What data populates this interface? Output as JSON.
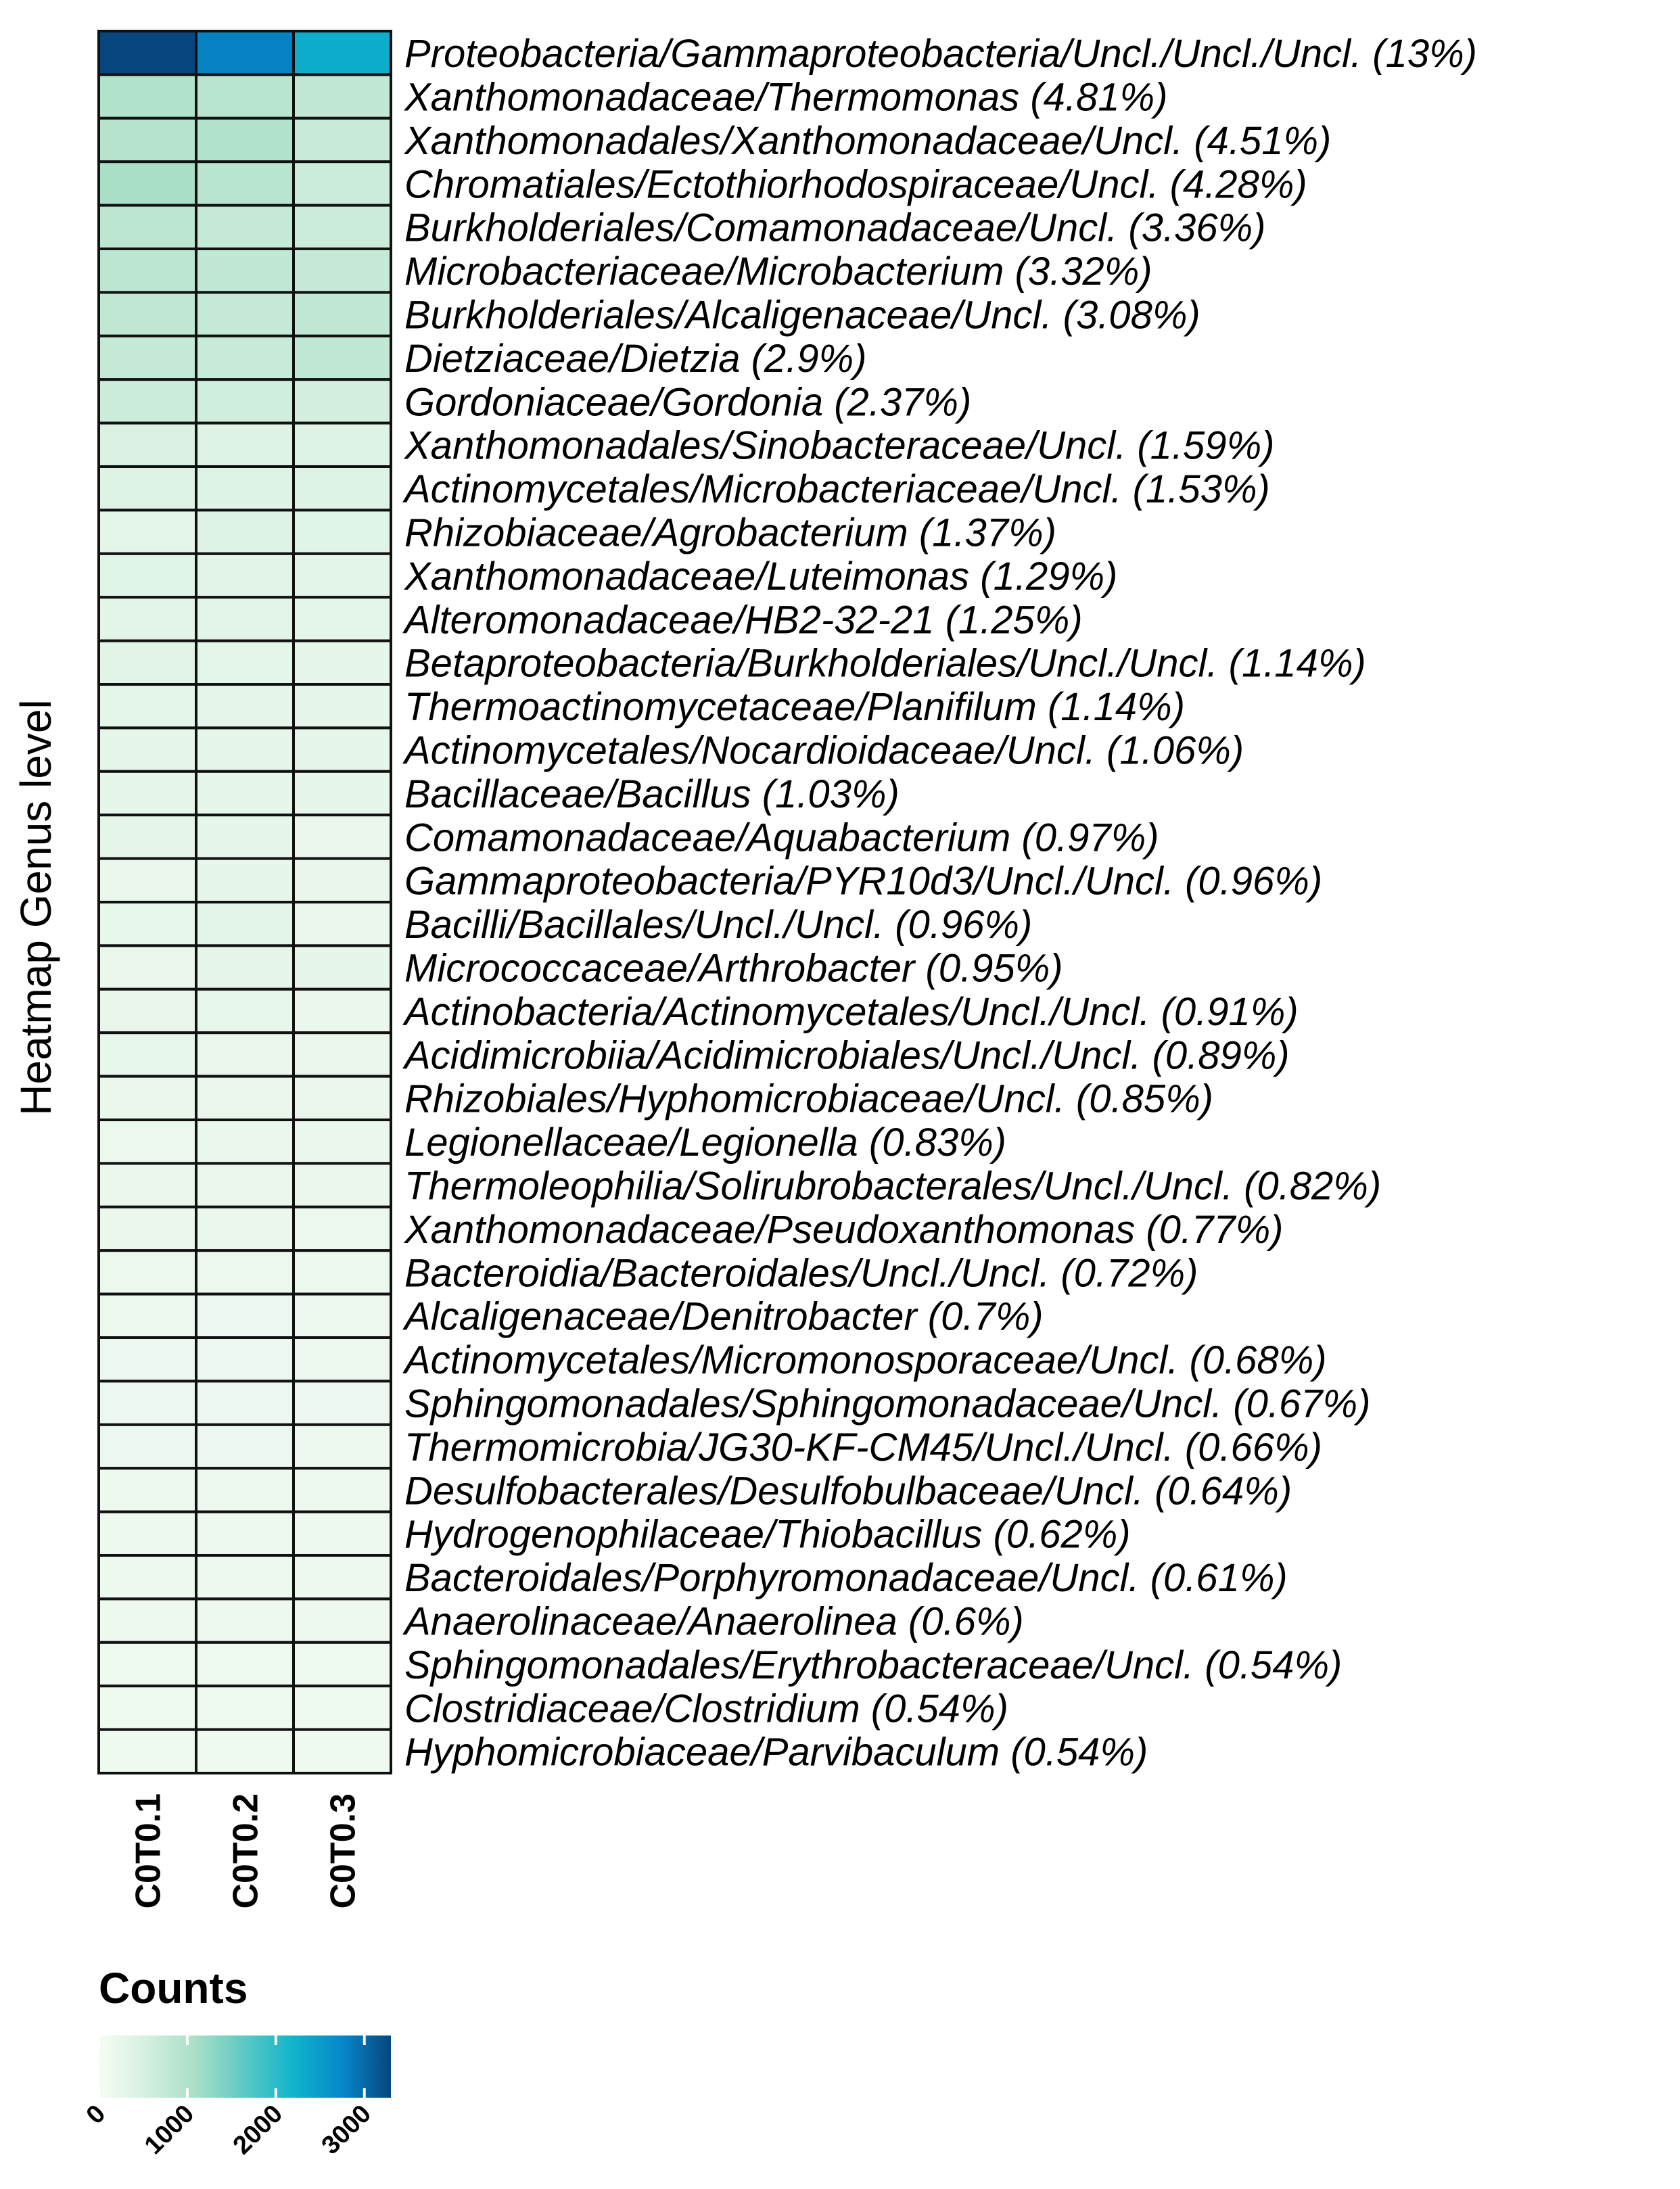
{
  "chart_data": {
    "type": "heatmap",
    "ylabel": "Heatmap Genus level",
    "columns": [
      "C0T0.1",
      "C0T0.2",
      "C0T0.3"
    ],
    "rows": [
      "Proteobacteria/Gammaproteobacteria/Uncl./Uncl./Uncl. (13%)",
      "Xanthomonadaceae/Thermomonas (4.81%)",
      "Xanthomonadales/Xanthomonadaceae/Uncl. (4.51%)",
      "Chromatiales/Ectothiorhodospiraceae/Uncl. (4.28%)",
      "Burkholderiales/Comamonadaceae/Uncl. (3.36%)",
      "Microbacteriaceae/Microbacterium (3.32%)",
      "Burkholderiales/Alcaligenaceae/Uncl. (3.08%)",
      "Dietziaceae/Dietzia (2.9%)",
      "Gordoniaceae/Gordonia (2.37%)",
      "Xanthomonadales/Sinobacteraceae/Uncl. (1.59%)",
      "Actinomycetales/Microbacteriaceae/Uncl. (1.53%)",
      "Rhizobiaceae/Agrobacterium (1.37%)",
      "Xanthomonadaceae/Luteimonas (1.29%)",
      "Alteromonadaceae/HB2-32-21 (1.25%)",
      "Betaproteobacteria/Burkholderiales/Uncl./Uncl. (1.14%)",
      "Thermoactinomycetaceae/Planifilum (1.14%)",
      "Actinomycetales/Nocardioidaceae/Uncl. (1.06%)",
      "Bacillaceae/Bacillus (1.03%)",
      "Comamonadaceae/Aquabacterium (0.97%)",
      "Gammaproteobacteria/PYR10d3/Uncl./Uncl. (0.96%)",
      "Bacilli/Bacillales/Uncl./Uncl. (0.96%)",
      "Micrococcaceae/Arthrobacter (0.95%)",
      "Actinobacteria/Actinomycetales/Uncl./Uncl. (0.91%)",
      "Acidimicrobiia/Acidimicrobiales/Uncl./Uncl. (0.89%)",
      "Rhizobiales/Hyphomicrobiaceae/Uncl. (0.85%)",
      "Legionellaceae/Legionella (0.83%)",
      "Thermoleophilia/Solirubrobacterales/Uncl./Uncl. (0.82%)",
      "Xanthomonadaceae/Pseudoxanthomonas (0.77%)",
      "Bacteroidia/Bacteroidales/Uncl./Uncl. (0.72%)",
      "Alcaligenaceae/Denitrobacter (0.7%)",
      "Actinomycetales/Micromonosporaceae/Uncl. (0.68%)",
      "Sphingomonadales/Sphingomonadaceae/Uncl. (0.67%)",
      "Thermomicrobia/JG30-KF-CM45/Uncl./Uncl. (0.66%)",
      "Desulfobacterales/Desulfobulbaceae/Uncl. (0.64%)",
      "Hydrogenophilaceae/Thiobacillus (0.62%)",
      "Bacteroidales/Porphyromonadaceae/Uncl. (0.61%)",
      "Anaerolinaceae/Anaerolinea (0.6%)",
      "Sphingomonadales/Erythrobacteraceae/Uncl. (0.54%)",
      "Clostridiaceae/Clostridium (0.54%)",
      "Hyphomicrobiaceae/Parvibaculum (0.54%)"
    ],
    "values": [
      [
        3300,
        2800,
        2300
      ],
      [
        1000,
        900,
        800
      ],
      [
        950,
        1000,
        700
      ],
      [
        1100,
        900,
        650
      ],
      [
        850,
        750,
        650
      ],
      [
        850,
        800,
        750
      ],
      [
        800,
        750,
        800
      ],
      [
        750,
        700,
        800
      ],
      [
        650,
        600,
        550
      ],
      [
        450,
        400,
        400
      ],
      [
        400,
        380,
        380
      ],
      [
        300,
        400,
        350
      ],
      [
        350,
        330,
        320
      ],
      [
        320,
        320,
        300
      ],
      [
        330,
        300,
        250
      ],
      [
        300,
        280,
        270
      ],
      [
        270,
        270,
        270
      ],
      [
        260,
        260,
        260
      ],
      [
        280,
        260,
        200
      ],
      [
        220,
        260,
        240
      ],
      [
        230,
        320,
        200
      ],
      [
        220,
        280,
        250
      ],
      [
        240,
        230,
        220
      ],
      [
        230,
        220,
        220
      ],
      [
        220,
        210,
        200
      ],
      [
        190,
        220,
        220
      ],
      [
        220,
        200,
        200
      ],
      [
        200,
        200,
        190
      ],
      [
        180,
        180,
        190
      ],
      [
        180,
        170,
        180
      ],
      [
        170,
        170,
        180
      ],
      [
        170,
        170,
        170
      ],
      [
        170,
        170,
        160
      ],
      [
        160,
        160,
        160
      ],
      [
        160,
        150,
        160
      ],
      [
        160,
        150,
        150
      ],
      [
        150,
        150,
        150
      ],
      [
        140,
        140,
        140
      ],
      [
        140,
        140,
        140
      ],
      [
        140,
        140,
        140
      ]
    ],
    "legend": {
      "title": "Counts",
      "ticks": [
        0,
        1000,
        2000,
        3000
      ],
      "tick_labels": [
        "0",
        "1000",
        "2000",
        "3000"
      ],
      "range": [
        0,
        3300
      ],
      "placement": "bottom-left",
      "colors": [
        "#f7fcf5",
        "#d4efe0",
        "#a9dfc7",
        "#5cc9c4",
        "#10b4cc",
        "#0588c9",
        "#07467f"
      ]
    },
    "grid": false
  }
}
